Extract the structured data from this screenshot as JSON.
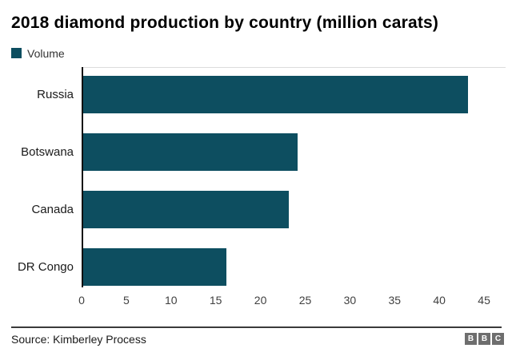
{
  "title": "2018 diamond production by country (million carats)",
  "legend": {
    "label": "Volume",
    "color": "#0d4e60"
  },
  "source": "Source: Kimberley Process",
  "logo": {
    "letters": [
      "B",
      "B",
      "C"
    ],
    "block_color": "#6e6e6e"
  },
  "chart_data": {
    "type": "bar",
    "orientation": "horizontal",
    "title": "2018 diamond production by country (million carats)",
    "series_name": "Volume",
    "categories": [
      "Russia",
      "Botswana",
      "Canada",
      "DR Congo"
    ],
    "values": [
      43,
      24,
      23,
      16
    ],
    "xlabel": "",
    "ylabel": "",
    "xlim": [
      0,
      45
    ],
    "xticks": [
      0,
      5,
      10,
      15,
      20,
      25,
      30,
      35,
      40,
      45
    ],
    "bar_color": "#0d4e60",
    "grid": false,
    "legend_position": "top-left"
  }
}
